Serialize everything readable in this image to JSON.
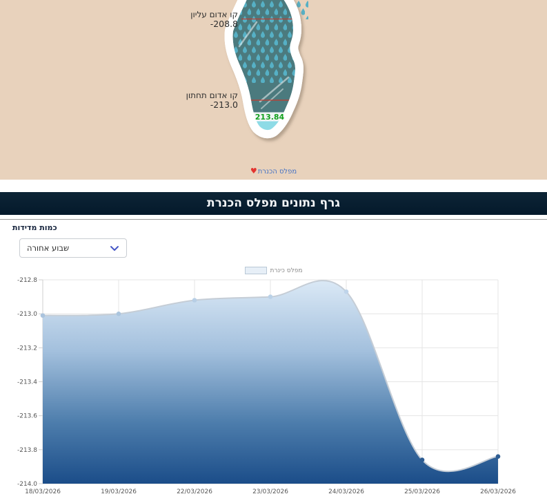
{
  "top": {
    "upper_line": {
      "label": "קו אדום עליון",
      "value": "-208.8"
    },
    "lower_line": {
      "label": "קו אדום תחתון",
      "value": "-213.0"
    },
    "current_level": "213.84",
    "link": {
      "label": "מפלס הכנרת",
      "heart": "♥"
    }
  },
  "header": {
    "title": "גרף נתונים מפלס הכנרת"
  },
  "controls": {
    "label": "כמות מדידות",
    "selected": "שבוע אחורה"
  },
  "chart_data": {
    "type": "area",
    "title": "",
    "legend": {
      "label": "מפלס כינרת",
      "position": "top"
    },
    "categories": [
      "18/03/2026",
      "19/03/2026",
      "22/03/2026",
      "23/03/2026",
      "24/03/2026",
      "25/03/2026",
      "26/03/2026"
    ],
    "series": [
      {
        "name": "מפלס כינרת",
        "values": [
          -213.01,
          -213.0,
          -212.92,
          -212.9,
          -212.87,
          -213.86,
          -213.84
        ]
      }
    ],
    "ylim": [
      -214.0,
      -212.8
    ],
    "yticks": [
      -212.8,
      -213.0,
      -213.2,
      -213.4,
      -213.6,
      -213.8,
      -214.0
    ],
    "grid": true,
    "curve": "smooth-spline",
    "style": {
      "gradient": [
        "#dbe9f6",
        "#a3c0dd",
        "#4d7dac",
        "#1b4d89"
      ],
      "line": "#c5cdd6",
      "dot_light": "#c9ddf0",
      "dot_dark": "#174a85",
      "grid": "#e4e4e4",
      "axis": "#cfcfcf",
      "label": "#555555"
    }
  },
  "colors": {
    "top_bg": "#e8d2bc",
    "lake_body": "#4b7a7e",
    "raindrop": "#56b0c5",
    "lake_water": "#8edbe6",
    "red_line": "#c23b2e",
    "level_green": "#13a11e",
    "header_bg": "#0a2133",
    "link_blue": "#4472c4",
    "heart_red": "#e3342f"
  }
}
